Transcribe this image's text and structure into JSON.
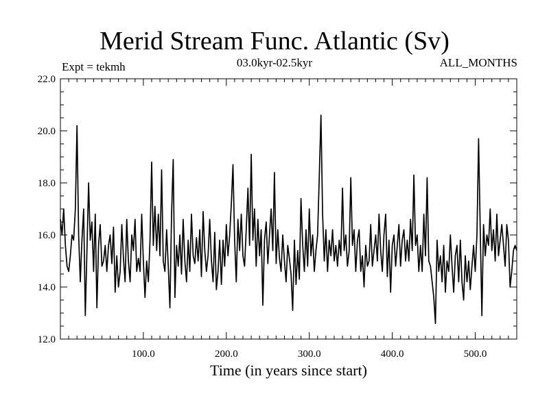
{
  "chart_data": {
    "type": "line",
    "title": "Merid Stream Func. Atlantic (Sv)",
    "subtitle_left": "Expt = tekmh",
    "subtitle_center": "03.0kyr-02.5kyr",
    "subtitle_right": "ALL_MONTHS",
    "xlabel": "Time (in years since start)",
    "ylabel": "",
    "xlim": [
      0,
      550
    ],
    "ylim": [
      12.0,
      22.0
    ],
    "xticks": [
      100,
      200,
      300,
      400,
      500
    ],
    "xtick_labels": [
      "100.0",
      "200.0",
      "300.0",
      "400.0",
      "500.0"
    ],
    "yticks": [
      12,
      14,
      16,
      18,
      20,
      22
    ],
    "ytick_labels": [
      "12.0",
      "14.0",
      "16.0",
      "18.0",
      "20.0",
      "22.0"
    ],
    "grid": false,
    "series": [
      {
        "color": "#000000",
        "points": [
          [
            0,
            16.6
          ],
          [
            2,
            16.0
          ],
          [
            4,
            17.0
          ],
          [
            6,
            15.6
          ],
          [
            8,
            14.8
          ],
          [
            10,
            14.6
          ],
          [
            12,
            15.2
          ],
          [
            14,
            16.0
          ],
          [
            16,
            15.8
          ],
          [
            18,
            17.0
          ],
          [
            20,
            20.2
          ],
          [
            22,
            16.0
          ],
          [
            24,
            14.2
          ],
          [
            26,
            15.8
          ],
          [
            28,
            17.0
          ],
          [
            30,
            12.9
          ],
          [
            32,
            15.4
          ],
          [
            34,
            18.0
          ],
          [
            36,
            15.8
          ],
          [
            38,
            16.5
          ],
          [
            40,
            14.6
          ],
          [
            42,
            16.8
          ],
          [
            44,
            13.2
          ],
          [
            46,
            15.6
          ],
          [
            48,
            16.4
          ],
          [
            50,
            14.8
          ],
          [
            52,
            15.0
          ],
          [
            54,
            15.6
          ],
          [
            56,
            14.6
          ],
          [
            58,
            15.6
          ],
          [
            60,
            16.0
          ],
          [
            62,
            14.9
          ],
          [
            64,
            16.3
          ],
          [
            66,
            13.8
          ],
          [
            68,
            15.2
          ],
          [
            70,
            14.0
          ],
          [
            72,
            14.6
          ],
          [
            74,
            16.4
          ],
          [
            76,
            15.1
          ],
          [
            78,
            14.2
          ],
          [
            80,
            16.6
          ],
          [
            82,
            15.0
          ],
          [
            84,
            14.2
          ],
          [
            86,
            16.0
          ],
          [
            88,
            15.4
          ],
          [
            90,
            16.6
          ],
          [
            92,
            14.6
          ],
          [
            94,
            15.1
          ],
          [
            96,
            14.6
          ],
          [
            98,
            16.8
          ],
          [
            100,
            15.0
          ],
          [
            102,
            13.6
          ],
          [
            104,
            15.0
          ],
          [
            106,
            14.2
          ],
          [
            108,
            15.8
          ],
          [
            110,
            18.8
          ],
          [
            112,
            15.6
          ],
          [
            114,
            17.1
          ],
          [
            116,
            15.4
          ],
          [
            118,
            16.8
          ],
          [
            120,
            15.2
          ],
          [
            122,
            18.5
          ],
          [
            124,
            15.0
          ],
          [
            126,
            14.6
          ],
          [
            128,
            16.2
          ],
          [
            130,
            14.8
          ],
          [
            132,
            13.2
          ],
          [
            134,
            16.8
          ],
          [
            136,
            18.9
          ],
          [
            138,
            13.6
          ],
          [
            140,
            15.6
          ],
          [
            142,
            14.8
          ],
          [
            144,
            16.0
          ],
          [
            146,
            14.5
          ],
          [
            148,
            16.6
          ],
          [
            150,
            15.0
          ],
          [
            152,
            14.2
          ],
          [
            154,
            15.8
          ],
          [
            156,
            14.6
          ],
          [
            158,
            16.8
          ],
          [
            160,
            15.2
          ],
          [
            162,
            14.9
          ],
          [
            164,
            15.9
          ],
          [
            166,
            15.0
          ],
          [
            168,
            16.2
          ],
          [
            170,
            14.4
          ],
          [
            172,
            16.9
          ],
          [
            174,
            15.4
          ],
          [
            176,
            14.6
          ],
          [
            178,
            15.2
          ],
          [
            180,
            16.6
          ],
          [
            182,
            15.0
          ],
          [
            184,
            14.2
          ],
          [
            186,
            16.1
          ],
          [
            188,
            13.9
          ],
          [
            190,
            14.6
          ],
          [
            192,
            15.8
          ],
          [
            194,
            14.1
          ],
          [
            196,
            15.8
          ],
          [
            198,
            14.8
          ],
          [
            200,
            16.4
          ],
          [
            202,
            15.2
          ],
          [
            204,
            16.0
          ],
          [
            206,
            17.2
          ],
          [
            208,
            18.7
          ],
          [
            210,
            15.8
          ],
          [
            212,
            14.2
          ],
          [
            214,
            16.6
          ],
          [
            216,
            15.4
          ],
          [
            218,
            16.8
          ],
          [
            220,
            15.2
          ],
          [
            222,
            14.8
          ],
          [
            224,
            16.2
          ],
          [
            226,
            17.8
          ],
          [
            228,
            15.6
          ],
          [
            230,
            19.1
          ],
          [
            232,
            15.8
          ],
          [
            234,
            17.0
          ],
          [
            236,
            14.8
          ],
          [
            238,
            16.6
          ],
          [
            240,
            15.2
          ],
          [
            242,
            16.2
          ],
          [
            244,
            13.3
          ],
          [
            246,
            15.8
          ],
          [
            248,
            16.5
          ],
          [
            250,
            14.9
          ],
          [
            252,
            16.0
          ],
          [
            254,
            17.0
          ],
          [
            256,
            15.4
          ],
          [
            258,
            18.4
          ],
          [
            260,
            14.9
          ],
          [
            262,
            16.2
          ],
          [
            264,
            15.1
          ],
          [
            266,
            14.6
          ],
          [
            268,
            16.0
          ],
          [
            270,
            15.0
          ],
          [
            272,
            14.2
          ],
          [
            274,
            15.6
          ],
          [
            276,
            15.1
          ],
          [
            278,
            14.5
          ],
          [
            280,
            13.1
          ],
          [
            282,
            15.8
          ],
          [
            284,
            14.1
          ],
          [
            286,
            15.4
          ],
          [
            288,
            14.3
          ],
          [
            290,
            17.4
          ],
          [
            292,
            15.6
          ],
          [
            294,
            14.6
          ],
          [
            296,
            16.2
          ],
          [
            298,
            14.8
          ],
          [
            300,
            17.0
          ],
          [
            302,
            15.2
          ],
          [
            304,
            16.0
          ],
          [
            306,
            14.6
          ],
          [
            308,
            15.4
          ],
          [
            310,
            16.0
          ],
          [
            312,
            18.2
          ],
          [
            314,
            20.6
          ],
          [
            316,
            16.8
          ],
          [
            318,
            15.0
          ],
          [
            320,
            16.2
          ],
          [
            322,
            14.6
          ],
          [
            324,
            15.8
          ],
          [
            326,
            15.2
          ],
          [
            328,
            16.2
          ],
          [
            330,
            15.0
          ],
          [
            332,
            15.6
          ],
          [
            334,
            14.8
          ],
          [
            336,
            15.8
          ],
          [
            338,
            15.2
          ],
          [
            340,
            17.8
          ],
          [
            342,
            15.4
          ],
          [
            344,
            16.0
          ],
          [
            346,
            14.8
          ],
          [
            348,
            15.4
          ],
          [
            350,
            18.2
          ],
          [
            352,
            15.6
          ],
          [
            354,
            16.2
          ],
          [
            356,
            14.6
          ],
          [
            358,
            15.8
          ],
          [
            360,
            16.2
          ],
          [
            362,
            14.6
          ],
          [
            364,
            15.2
          ],
          [
            366,
            14.0
          ],
          [
            368,
            15.6
          ],
          [
            370,
            14.8
          ],
          [
            372,
            15.0
          ],
          [
            374,
            16.4
          ],
          [
            376,
            14.8
          ],
          [
            378,
            15.4
          ],
          [
            380,
            16.0
          ],
          [
            382,
            15.0
          ],
          [
            384,
            16.8
          ],
          [
            386,
            15.4
          ],
          [
            388,
            14.6
          ],
          [
            390,
            16.0
          ],
          [
            392,
            16.8
          ],
          [
            394,
            14.4
          ],
          [
            396,
            15.8
          ],
          [
            398,
            13.8
          ],
          [
            400,
            15.6
          ],
          [
            402,
            16.0
          ],
          [
            404,
            14.8
          ],
          [
            406,
            15.6
          ],
          [
            408,
            16.4
          ],
          [
            410,
            14.8
          ],
          [
            412,
            15.8
          ],
          [
            414,
            16.2
          ],
          [
            416,
            15.0
          ],
          [
            418,
            15.8
          ],
          [
            420,
            15.0
          ],
          [
            422,
            16.6
          ],
          [
            424,
            15.4
          ],
          [
            426,
            18.3
          ],
          [
            428,
            15.6
          ],
          [
            430,
            16.0
          ],
          [
            432,
            14.6
          ],
          [
            434,
            15.6
          ],
          [
            436,
            14.6
          ],
          [
            438,
            16.8
          ],
          [
            440,
            15.2
          ],
          [
            442,
            18.2
          ],
          [
            444,
            15.0
          ],
          [
            446,
            14.8
          ],
          [
            448,
            14.2
          ],
          [
            450,
            13.6
          ],
          [
            452,
            12.6
          ],
          [
            454,
            15.8
          ],
          [
            456,
            14.6
          ],
          [
            458,
            15.2
          ],
          [
            460,
            14.2
          ],
          [
            462,
            15.6
          ],
          [
            464,
            13.8
          ],
          [
            466,
            15.0
          ],
          [
            468,
            14.6
          ],
          [
            470,
            16.0
          ],
          [
            472,
            14.8
          ],
          [
            474,
            13.8
          ],
          [
            476,
            15.2
          ],
          [
            478,
            15.6
          ],
          [
            480,
            14.2
          ],
          [
            482,
            15.8
          ],
          [
            484,
            14.2
          ],
          [
            486,
            13.5
          ],
          [
            488,
            15.2
          ],
          [
            490,
            14.2
          ],
          [
            492,
            15.0
          ],
          [
            494,
            13.9
          ],
          [
            496,
            14.8
          ],
          [
            498,
            15.6
          ],
          [
            500,
            14.6
          ],
          [
            502,
            16.0
          ],
          [
            504,
            19.7
          ],
          [
            506,
            16.2
          ],
          [
            508,
            12.9
          ],
          [
            510,
            16.4
          ],
          [
            512,
            15.2
          ],
          [
            514,
            16.0
          ],
          [
            516,
            15.6
          ],
          [
            518,
            17.0
          ],
          [
            520,
            15.4
          ],
          [
            522,
            16.2
          ],
          [
            524,
            15.0
          ],
          [
            526,
            16.8
          ],
          [
            528,
            15.2
          ],
          [
            530,
            15.8
          ],
          [
            532,
            16.4
          ],
          [
            534,
            15.6
          ],
          [
            536,
            14.8
          ],
          [
            538,
            16.4
          ],
          [
            540,
            15.8
          ],
          [
            542,
            14.0
          ],
          [
            544,
            14.6
          ],
          [
            546,
            15.4
          ],
          [
            548,
            15.6
          ],
          [
            550,
            15.4
          ]
        ]
      }
    ]
  }
}
